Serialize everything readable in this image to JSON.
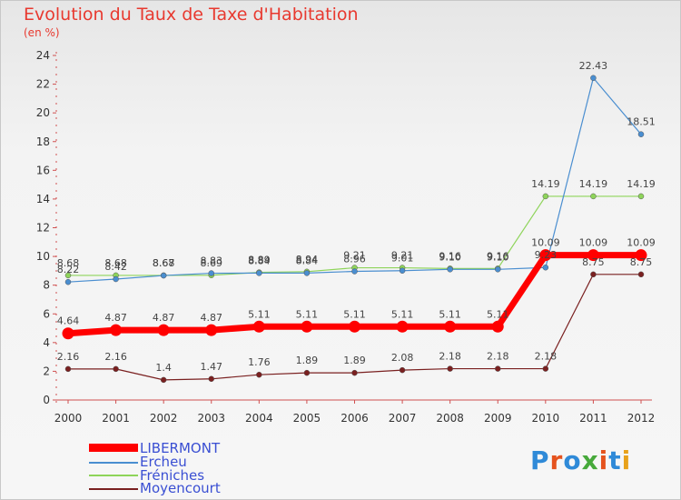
{
  "title": "Evolution du Taux de Taxe d'Habitation",
  "subtitle": "(en %)",
  "brand": {
    "letters": [
      "P",
      "r",
      "o",
      "x",
      "i",
      "t",
      "i"
    ],
    "colors": [
      "#2f8ad8",
      "#e5531e",
      "#2f8ad8",
      "#47a93b",
      "#e5531e",
      "#2f8ad8",
      "#e8a21b"
    ]
  },
  "chart_data": {
    "type": "line",
    "title": "Evolution du Taux de Taxe d'Habitation",
    "ylabel": "(en %)",
    "ylim": [
      0,
      24
    ],
    "yticks": [
      0,
      2,
      4,
      6,
      8,
      10,
      12,
      14,
      16,
      18,
      20,
      22,
      24
    ],
    "categories": [
      "2000",
      "2001",
      "2002",
      "2003",
      "2004",
      "2005",
      "2006",
      "2007",
      "2008",
      "2009",
      "2010",
      "2011",
      "2012"
    ],
    "grid": false,
    "legend_position": "bottom-left",
    "series": [
      {
        "name": "LIBERMONT",
        "color": "#ff0000",
        "values": [
          4.64,
          4.87,
          4.87,
          4.87,
          5.11,
          5.11,
          5.11,
          5.11,
          5.11,
          5.11,
          10.09,
          10.09,
          10.09
        ],
        "labels": [
          "4.64",
          "4.87",
          "4.87",
          "4.87",
          "5.11",
          "5.11",
          "5.11",
          "5.11",
          "5.11",
          "5.11",
          "10.09",
          "10.09",
          "10.09"
        ]
      },
      {
        "name": "Ercheu",
        "color": "#4a8ed0",
        "values": [
          8.22,
          8.42,
          8.67,
          8.83,
          8.84,
          8.84,
          8.96,
          9.01,
          9.1,
          9.1,
          9.23,
          22.43,
          18.51
        ],
        "labels": [
          "8.22",
          "8.42",
          "8.67",
          "8.83",
          "8.84",
          "8.84",
          "8.96",
          "9.01",
          "9.10",
          "9.10",
          "9.23",
          "22.43",
          "18.51"
        ]
      },
      {
        "name": "Fréniches",
        "color": "#8ed45a",
        "values": [
          8.68,
          8.68,
          8.68,
          8.69,
          8.89,
          8.94,
          9.21,
          9.21,
          9.16,
          9.16,
          14.19,
          14.19,
          14.19
        ],
        "labels": [
          "8.68",
          "8.68",
          "8.68",
          "8.69",
          "8.89",
          "8.94",
          "9.21",
          "9.21",
          "9.16",
          "9.16",
          "14.19",
          "14.19",
          "14.19"
        ]
      },
      {
        "name": "Moyencourt",
        "color": "#7a2020",
        "values": [
          2.16,
          2.16,
          1.4,
          1.47,
          1.76,
          1.89,
          1.89,
          2.08,
          2.18,
          2.18,
          2.18,
          8.75,
          8.75
        ],
        "labels": [
          "2.16",
          "2.16",
          "1.4",
          "1.47",
          "1.76",
          "1.89",
          "1.89",
          "2.08",
          "2.18",
          "2.18",
          "2.18",
          "8.75",
          "8.75"
        ]
      }
    ]
  }
}
